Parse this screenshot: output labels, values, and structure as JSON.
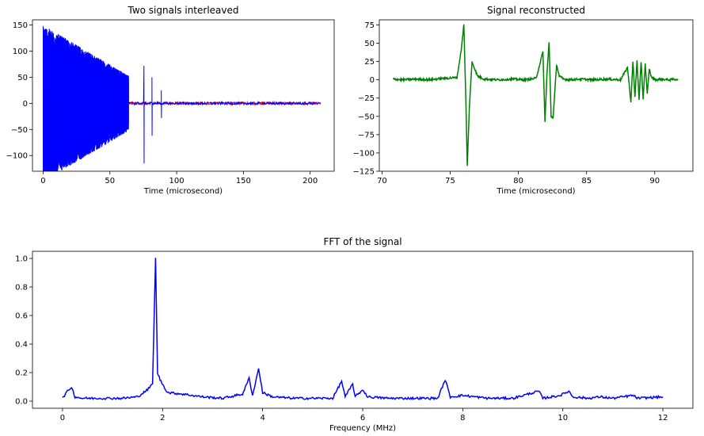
{
  "chart_data": [
    {
      "type": "line",
      "title": "Two signals interleaved",
      "xlabel": "Time (microsecond)",
      "ylabel": "",
      "xlim": [
        -8,
        218
      ],
      "ylim": [
        -130,
        160
      ],
      "xticks": [
        0,
        50,
        100,
        150,
        200
      ],
      "yticks": [
        -100,
        -50,
        0,
        50,
        100,
        150
      ],
      "series": [
        {
          "color": "#ff0000",
          "envelope_peak": 115,
          "decay_end_x": 64
        },
        {
          "color": "#0000ff",
          "envelope_peak": 150,
          "decay_end_x": 64,
          "spike_times": [
            75.5,
            81.5,
            88.5
          ]
        }
      ]
    },
    {
      "type": "line",
      "title": "Signal reconstructed",
      "xlabel": "Time (microsecond)",
      "ylabel": "",
      "xlim": [
        69.8,
        92.8
      ],
      "ylim": [
        -125,
        82
      ],
      "xticks": [
        70,
        75,
        80,
        85,
        90
      ],
      "yticks": [
        -125,
        -100,
        -75,
        -50,
        -25,
        0,
        25,
        50,
        75
      ],
      "series": [
        {
          "color": "#008000",
          "x": [
            70.8,
            71.5,
            72.5,
            73.5,
            74.5,
            75.5,
            75.8,
            76.0,
            76.15,
            76.25,
            76.4,
            76.6,
            77.0,
            77.5,
            78.5,
            79.5,
            80.5,
            81.3,
            81.8,
            81.95,
            82.1,
            82.25,
            82.4,
            82.55,
            82.8,
            83.0,
            83.3,
            83.8,
            84.5,
            85.5,
            86.5,
            87.5,
            88.0,
            88.25,
            88.4,
            88.55,
            88.7,
            88.85,
            89.0,
            89.15,
            89.3,
            89.45,
            89.6,
            89.75,
            89.9,
            90.1,
            90.5,
            91.0,
            91.7
          ],
          "y": [
            1,
            0,
            1,
            0,
            2,
            3,
            40,
            75,
            -30,
            -118,
            -40,
            25,
            5,
            1,
            0,
            1,
            0,
            2,
            38,
            -58,
            10,
            51,
            -50,
            -52,
            21,
            5,
            1,
            0,
            1,
            0,
            1,
            0,
            17,
            -30,
            25,
            -24,
            27,
            -28,
            25,
            -26,
            22,
            -20,
            15,
            4,
            1,
            0,
            1,
            0,
            1
          ]
        }
      ]
    },
    {
      "type": "line",
      "title": "FFT of the signal",
      "xlabel": "Frequency (MHz)",
      "ylabel": "",
      "xlim": [
        -0.6,
        12.6
      ],
      "ylim": [
        -0.05,
        1.05
      ],
      "xticks": [
        0,
        2,
        4,
        6,
        8,
        10,
        12
      ],
      "yticks": [
        0.0,
        0.2,
        0.4,
        0.6,
        0.8,
        1.0
      ],
      "series": [
        {
          "color": "#0000ff",
          "x": [
            0.0,
            0.08,
            0.18,
            0.25,
            0.4,
            0.8,
            1.2,
            1.5,
            1.7,
            1.8,
            1.86,
            1.9,
            1.95,
            2.1,
            2.4,
            2.8,
            3.2,
            3.6,
            3.73,
            3.8,
            3.92,
            4.0,
            4.2,
            4.6,
            5.0,
            5.4,
            5.58,
            5.65,
            5.8,
            5.85,
            6.0,
            6.1,
            6.5,
            7.0,
            7.5,
            7.65,
            7.75,
            8.0,
            8.5,
            9.0,
            9.52,
            9.6,
            9.95,
            10.12,
            10.2,
            10.5,
            10.75,
            11.0,
            11.4,
            11.5,
            12.0
          ],
          "y": [
            0.02,
            0.06,
            0.1,
            0.03,
            0.02,
            0.02,
            0.02,
            0.03,
            0.08,
            0.12,
            1.0,
            0.2,
            0.15,
            0.06,
            0.05,
            0.03,
            0.02,
            0.05,
            0.16,
            0.04,
            0.23,
            0.06,
            0.03,
            0.02,
            0.02,
            0.02,
            0.14,
            0.03,
            0.12,
            0.03,
            0.08,
            0.03,
            0.02,
            0.02,
            0.02,
            0.15,
            0.03,
            0.04,
            0.02,
            0.02,
            0.07,
            0.02,
            0.04,
            0.07,
            0.03,
            0.02,
            0.03,
            0.02,
            0.04,
            0.02,
            0.03
          ]
        }
      ]
    }
  ]
}
